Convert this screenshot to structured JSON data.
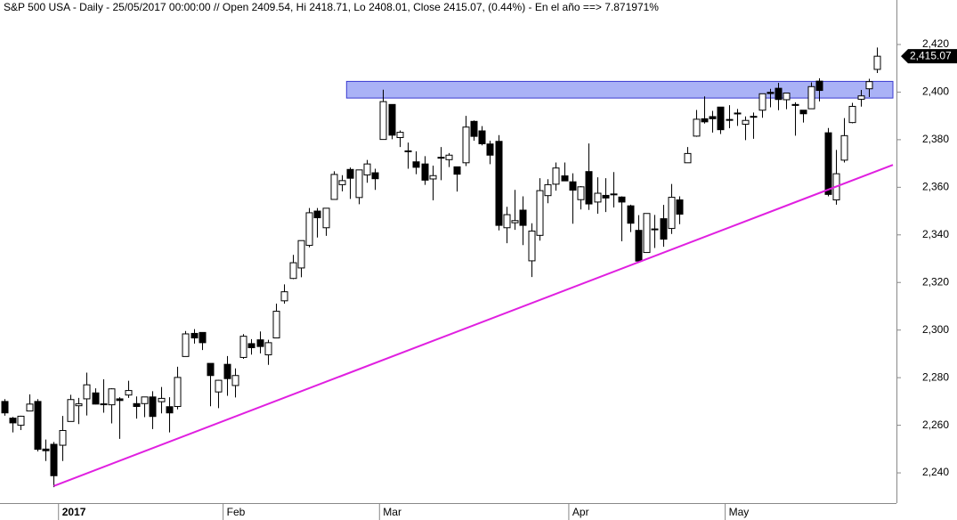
{
  "chart_data": {
    "type": "candlestick",
    "title": "S&P 500 USA - Daily - 25/05/2017 00:00:00 // Open 2409.54, Hi 2418.71, Lo 2408.01, Close 2415.07, (0.44%) - En el año ==> 7.871971%",
    "categories": [
      null,
      null,
      null,
      null,
      null,
      null,
      null,
      "2017",
      null,
      null,
      null,
      null,
      null,
      null,
      null,
      null,
      null,
      null,
      null,
      null,
      null,
      null,
      null,
      null,
      null,
      null,
      null,
      "Feb",
      null,
      null,
      null,
      null,
      null,
      null,
      null,
      null,
      null,
      null,
      null,
      null,
      null,
      null,
      null,
      null,
      null,
      null,
      "Mar",
      null,
      null,
      null,
      null,
      null,
      null,
      null,
      null,
      null,
      null,
      null,
      null,
      null,
      null,
      null,
      null,
      null,
      null,
      null,
      null,
      null,
      null,
      "Apr",
      null,
      null,
      null,
      null,
      null,
      null,
      null,
      null,
      null,
      null,
      null,
      null,
      null,
      null,
      null,
      null,
      null,
      null,
      "May",
      null,
      null,
      null,
      null,
      null,
      null,
      null,
      null,
      null,
      null,
      null,
      null,
      null,
      null,
      null,
      null,
      null,
      null
    ],
    "open": [
      2270,
      2263,
      2260,
      2266,
      2270,
      2250,
      2252,
      2251.6,
      2261.6,
      2268.2,
      2271.1,
      2273.6,
      2269,
      2268.6,
      2271.1,
      2272.7,
      2269.1,
      2269.1,
      2271.9,
      2269.9,
      2267.8,
      2267.9,
      2288.9,
      2298.6,
      2299,
      2286,
      2274,
      2285.6,
      2276.7,
      2288.5,
      2294.3,
      2295.9,
      2289.6,
      2296.7,
      2312.3,
      2321.7,
      2326.1,
      2335.6,
      2350,
      2343,
      2354.9,
      2361.1,
      2367.5,
      2355.7,
      2365.2,
      2366.1,
      2380.1,
      2394.8,
      2380.9,
      2375.2,
      2370.7,
      2369.8,
      2363.5,
      2372.5,
      2371.6,
      2368.6,
      2370.3,
      2387.7,
      2383.7,
      2378.2,
      2379.3,
      2343,
      2345.1,
      2350.4,
      2329.1,
      2339.8,
      2356.5,
      2361.3,
      2364.8,
      2362.3,
      2354.8,
      2366.6,
      2353.8,
      2356.6,
      2357.2,
      2355.9,
      2352.2,
      2341.9,
      2332.6,
      2342.5,
      2346.8,
      2342.7,
      2354.7,
      2370.3,
      2381.5,
      2388.8,
      2389.7,
      2393.7,
      2388.5,
      2391.1,
      2386.5,
      2389.8,
      2392.4,
      2399.9,
      2401.6,
      2396.8,
      2394.8,
      2392.4,
      2393,
      2404.6,
      2382.9,
      2354.7,
      2371.4,
      2387.2,
      2397,
      2401.4,
      2409.54
    ],
    "high": [
      2271,
      2263.5,
      2264,
      2273,
      2271,
      2254,
      2253,
      2263.9,
      2272.8,
      2271.5,
      2282.1,
      2275.5,
      2279.3,
      2275.5,
      2271.8,
      2278.7,
      2272.1,
      2272,
      2274.3,
      2276.1,
      2271.8,
      2284.6,
      2299.6,
      2300.4,
      2299,
      2286,
      2279.1,
      2289.1,
      2283.9,
      2298.3,
      2296.2,
      2299.4,
      2295.9,
      2311.1,
      2319.2,
      2331.6,
      2337.6,
      2351.3,
      2351.3,
      2351.2,
      2366.7,
      2365.1,
      2368.3,
      2367.3,
      2371.5,
      2367.8,
      2401,
      2394.8,
      2383.9,
      2378.8,
      2375.1,
      2373.1,
      2369.1,
      2376.9,
      2374.4,
      2368.6,
      2390,
      2388.1,
      2385.7,
      2379.6,
      2381.9,
      2351.8,
      2358.9,
      2356.2,
      2344.9,
      2363.8,
      2363.4,
      2370.4,
      2370.4,
      2365.9,
      2360.5,
      2378.4,
      2364.2,
      2363.8,
      2366.4,
      2356.2,
      2352.7,
      2348.3,
      2349.1,
      2348.4,
      2352.6,
      2361.4,
      2356.2,
      2376.9,
      2392.5,
      2398.2,
      2392.1,
      2393.7,
      2394.5,
      2392.9,
      2389.8,
      2391.4,
      2399.3,
      2401.4,
      2403.9,
      2399.7,
      2395.7,
      2392.4,
      2404.1,
      2405.8,
      2384.9,
      2375.7,
      2389.1,
      2395.5,
      2400.9,
      2405.6,
      2418.71
    ],
    "low": [
      2264,
      2257,
      2258,
      2266,
      2249,
      2245,
      2234,
      2245,
      2261.6,
      2260.5,
      2264.1,
      2268.8,
      2265.3,
      2260.8,
      2254.3,
      2271.5,
      2262.8,
      2263.4,
      2258.4,
      2265,
      2257,
      2266.7,
      2288.9,
      2294.3,
      2291.6,
      2268,
      2267.2,
      2272.4,
      2271.7,
      2287.9,
      2289.7,
      2290.2,
      2285.4,
      2296.6,
      2311.1,
      2321.4,
      2322.2,
      2334.8,
      2338.9,
      2339.6,
      2354.9,
      2358.3,
      2355.1,
      2352.9,
      2361.9,
      2358.9,
      2380.1,
      2380.2,
      2376.9,
      2367.8,
      2365.5,
      2361,
      2354.5,
      2363,
      2368.5,
      2358.2,
      2368.9,
      2379.6,
      2377.6,
      2369.7,
      2341.9,
      2336.5,
      2342.1,
      2335.7,
      2322.3,
      2337.6,
      2353.3,
      2358.6,
      2362.6,
      2344.7,
      2350.7,
      2350.5,
      2348.9,
      2349.6,
      2351.5,
      2337.3,
      2341.2,
      2328.9,
      2332.5,
      2334.5,
      2335,
      2340.4,
      2344.5,
      2370.3,
      2381.2,
      2386.8,
      2383,
      2382.4,
      2384.8,
      2385.8,
      2379.8,
      2380.4,
      2389.2,
      2393.6,
      2392.4,
      2392.8,
      2381.7,
      2387.2,
      2393,
      2396.1,
      2356.2,
      2352.7,
      2370.4,
      2386.9,
      2393.9,
      2397.9,
      2408.01
    ],
    "close": [
      2265.2,
      2261,
      2263.8,
      2268.9,
      2249.9,
      2249.3,
      2238.8,
      2257.8,
      2270.8,
      2269,
      2277,
      2268.9,
      2268.9,
      2275.3,
      2270.4,
      2274.6,
      2267.9,
      2271.9,
      2263.7,
      2271.3,
      2265.2,
      2280.1,
      2298.4,
      2296.7,
      2294.7,
      2280.9,
      2278.9,
      2279.6,
      2280.9,
      2297.4,
      2292.6,
      2293.1,
      2294.7,
      2307.9,
      2316.1,
      2328.3,
      2337.6,
      2349.3,
      2347.2,
      2351.2,
      2365.4,
      2362.8,
      2363.8,
      2367.3,
      2369.8,
      2363.6,
      2396,
      2381.9,
      2383.1,
      2375.3,
      2368.4,
      2363,
      2364.9,
      2372.6,
      2373.5,
      2365.5,
      2385.3,
      2381.4,
      2378.3,
      2373.5,
      2344,
      2348.5,
      2346,
      2344,
      2341.6,
      2358.6,
      2361.1,
      2368.1,
      2362.7,
      2358.8,
      2360.2,
      2353,
      2357.5,
      2355.5,
      2357.2,
      2353.8,
      2344.9,
      2329,
      2349,
      2342.2,
      2338.2,
      2355.8,
      2348.7,
      2374.2,
      2388.6,
      2387.5,
      2388.8,
      2384.2,
      2388.3,
      2391.2,
      2388.1,
      2389.5,
      2399.3,
      2399.4,
      2396.9,
      2399.6,
      2394.4,
      2390.9,
      2402.3,
      2400.7,
      2357,
      2365.7,
      2381.7,
      2394,
      2398.4,
      2404.4,
      2415.07
    ],
    "up_color": "#ffffff",
    "down_color": "#000000",
    "ylim": [
      2227.3,
      2438.7
    ],
    "yticks": [
      {
        "value": 2240,
        "label": "2,240"
      },
      {
        "value": 2260,
        "label": "2,260"
      },
      {
        "value": 2280,
        "label": "2,280"
      },
      {
        "value": 2300,
        "label": "2,300"
      },
      {
        "value": 2320,
        "label": "2,320"
      },
      {
        "value": 2340,
        "label": "2,340"
      },
      {
        "value": 2360,
        "label": "2,360"
      },
      {
        "value": 2380,
        "label": "2,380"
      },
      {
        "value": 2400,
        "label": "2,400"
      },
      {
        "value": 2420,
        "label": "2,420"
      }
    ],
    "last_price": {
      "value": 2415.07,
      "label": "2,415.07"
    },
    "zone": {
      "x_start": 42,
      "y": [
        2397.5,
        2404.5
      ],
      "color": "#aab2f6"
    },
    "trendline": {
      "x": [
        6,
        108
      ],
      "y": [
        2234.5,
        2369.5
      ],
      "color": "#e020e0"
    }
  }
}
